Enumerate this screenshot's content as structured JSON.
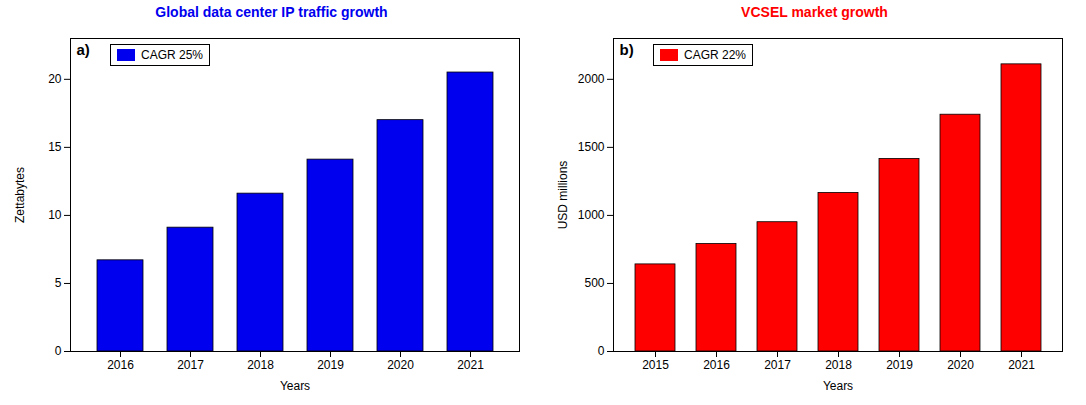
{
  "chart_data": [
    {
      "type": "bar",
      "title": "Global data center IP traffic growth",
      "xlabel": "Years",
      "ylabel": "Zettabytes",
      "categories": [
        "2016",
        "2017",
        "2018",
        "2019",
        "2020",
        "2021"
      ],
      "series": [
        {
          "name": "CAGR 25%",
          "color": "#0000EE",
          "values": [
            6.7,
            9.1,
            11.6,
            14.1,
            17.0,
            20.5
          ]
        }
      ],
      "ylim": [
        0,
        23
      ],
      "yticks": [
        0,
        5,
        10,
        15,
        20
      ],
      "legend": "upper left",
      "annotations": [
        "a)"
      ]
    },
    {
      "type": "bar",
      "title": "VCSEL market growth",
      "xlabel": "Years",
      "ylabel": "USD millions",
      "categories": [
        "2015",
        "2016",
        "2017",
        "2018",
        "2019",
        "2020",
        "2021"
      ],
      "series": [
        {
          "name": "CAGR 22%",
          "color": "#FF0000",
          "values": [
            640,
            790,
            950,
            1165,
            1415,
            1740,
            2110
          ]
        }
      ],
      "ylim": [
        0,
        2300
      ],
      "yticks": [
        0,
        500,
        1000,
        1500,
        2000
      ],
      "legend": "upper left",
      "annotations": [
        "b)"
      ]
    }
  ]
}
